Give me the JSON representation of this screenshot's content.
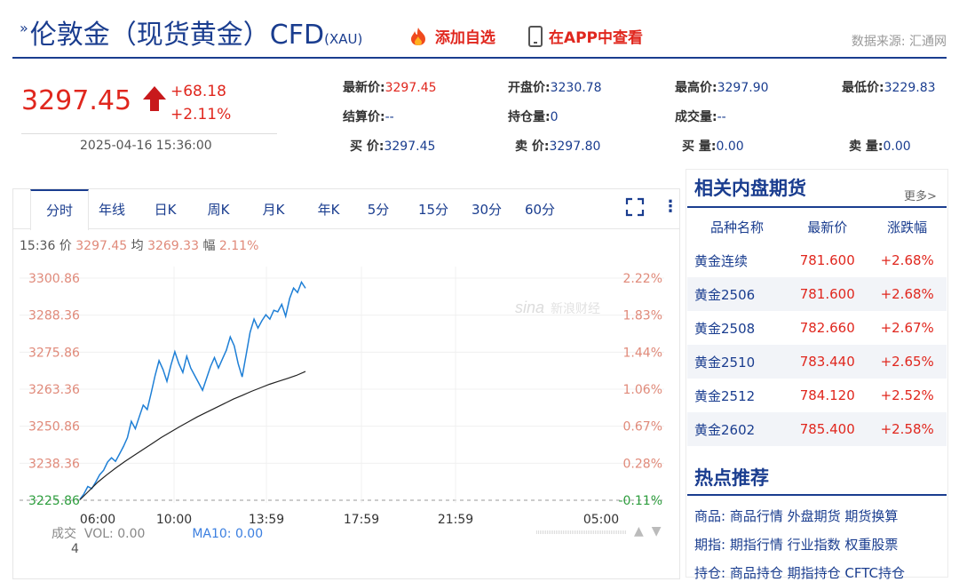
{
  "header": {
    "title_main": "伦敦金（现货黄金）CFD",
    "title_sub": "(XAU)",
    "add_watch": "添加自选",
    "view_app": "在APP中查看",
    "source": "数据来源: 汇通网"
  },
  "quote": {
    "price": "3297.45",
    "change": "+68.18",
    "change_pct": "+2.11%",
    "datetime": "2025-04-16 15:36:00",
    "fields": [
      {
        "label": "最新价:",
        "value": "3297.45",
        "red": true
      },
      {
        "label": "开盘价:",
        "value": "3230.78",
        "red": false
      },
      {
        "label": "最高价:",
        "value": "3297.90",
        "red": false
      },
      {
        "label": "最低价:",
        "value": "3229.83",
        "red": false
      },
      {
        "label": "结算价:",
        "value": "--",
        "red": false
      },
      {
        "label": "持仓量:",
        "value": "0",
        "red": false
      },
      {
        "label": "成交量:",
        "value": "--",
        "red": false
      },
      {
        "label": "买  价:",
        "value": "3297.45",
        "red": false
      },
      {
        "label": "卖  价:",
        "value": "3297.80",
        "red": false
      },
      {
        "label": "买  量:",
        "value": "0.00",
        "red": false
      },
      {
        "label": "卖  量:",
        "value": "0.00",
        "red": false
      }
    ]
  },
  "tabs": [
    "分时",
    "年线",
    "日K",
    "周K",
    "月K",
    "年K",
    "5分",
    "15分",
    "30分",
    "60分"
  ],
  "chart_info": {
    "time": "15:36",
    "price_label": "价",
    "price": "3297.45",
    "avg_label": "均",
    "avg": "3269.33",
    "amp_label": "幅",
    "amp": "2.11%"
  },
  "chart_data": {
    "type": "line",
    "y_ticks": [
      "3300.86",
      "3288.36",
      "3275.86",
      "3263.36",
      "3250.86",
      "3238.36",
      "3225.86"
    ],
    "pct_ticks": [
      "2.22%",
      "1.83%",
      "1.44%",
      "1.06%",
      "0.67%",
      "0.28%",
      "-0.11%"
    ],
    "x_ticks": [
      "06:00",
      "10:00",
      "13:59",
      "17:59",
      "21:59",
      "05:00"
    ],
    "ylim": [
      3225.86,
      3300.86
    ],
    "reference_price": 3229.27,
    "series": [
      {
        "name": "价",
        "values": [
          3226.2,
          3228.0,
          3230.5,
          3229.8,
          3232.0,
          3234.5,
          3236.0,
          3238.8,
          3240.2,
          3239.0,
          3241.5,
          3244.0,
          3247.0,
          3252.5,
          3250.0,
          3254.0,
          3258.0,
          3256.5,
          3262.0,
          3268.0,
          3273.0,
          3270.0,
          3266.0,
          3271.5,
          3276.0,
          3272.0,
          3269.0,
          3274.5,
          3270.5,
          3268.0,
          3265.5,
          3263.0,
          3267.0,
          3271.0,
          3274.0,
          3270.5,
          3273.5,
          3276.5,
          3281.0,
          3278.0,
          3272.0,
          3267.5,
          3275.0,
          3282.5,
          3287.0,
          3284.0,
          3286.5,
          3288.5,
          3287.0,
          3290.0,
          3289.5,
          3292.0,
          3288.0,
          3294.0,
          3297.5,
          3296.0,
          3299.5,
          3297.45
        ]
      },
      {
        "name": "均",
        "values": [
          3226.0,
          3229.0,
          3232.0,
          3234.5,
          3236.8,
          3239.0,
          3241.0,
          3243.0,
          3245.0,
          3247.0,
          3248.8,
          3250.6,
          3252.3,
          3254.0,
          3255.5,
          3257.0,
          3258.5,
          3260.0,
          3261.3,
          3262.6,
          3263.8,
          3265.0,
          3266.0,
          3267.0,
          3268.0,
          3269.33
        ]
      }
    ],
    "volume_label": "成交",
    "volume_text": "VOL: 0.00",
    "ma_text": "MA10: 0.00",
    "volume_axis_tick": "4"
  },
  "related": {
    "title": "相关内盘期货",
    "more": "更多>",
    "headers": [
      "品种名称",
      "最新价",
      "涨跌幅"
    ],
    "rows": [
      {
        "name": "黄金连续",
        "price": "781.600",
        "pct": "+2.68%"
      },
      {
        "name": "黄金2506",
        "price": "781.600",
        "pct": "+2.68%"
      },
      {
        "name": "黄金2508",
        "price": "782.660",
        "pct": "+2.67%"
      },
      {
        "name": "黄金2510",
        "price": "783.440",
        "pct": "+2.65%"
      },
      {
        "name": "黄金2512",
        "price": "784.120",
        "pct": "+2.52%"
      },
      {
        "name": "黄金2602",
        "price": "785.400",
        "pct": "+2.58%"
      }
    ]
  },
  "hot": {
    "title": "热点推荐",
    "lines": [
      {
        "cat": "商品:",
        "items": "商品行情 外盘期货 期货换算"
      },
      {
        "cat": "期指:",
        "items": "期指行情 行业指数 权重股票"
      },
      {
        "cat": "持仓:",
        "items": "商品持仓 期指持仓 CFTC持仓"
      }
    ]
  },
  "colors": {
    "accent": "#1a3d8f",
    "up": "#e0271e",
    "line": "#1e7fd6",
    "avg": "#222222"
  }
}
